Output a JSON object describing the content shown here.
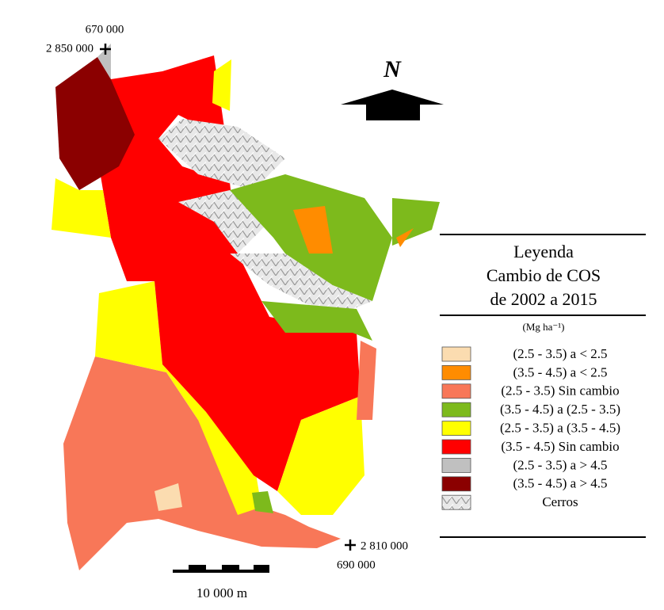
{
  "coordinates": {
    "top_left": {
      "x": "670 000",
      "y": "2 850 000"
    },
    "bottom_right": {
      "y": "2 810 000",
      "x": "690 000"
    }
  },
  "north": "N",
  "legend": {
    "title": [
      "Leyenda",
      "Cambio de COS",
      "de 2002 a 2015"
    ],
    "unit": "(Mg ha⁻¹)",
    "items": [
      {
        "label": "(2.5 - 3.5) a < 2.5",
        "color": "#fbdcb0"
      },
      {
        "label": "(3.5 - 4.5) a < 2.5",
        "color": "#ff8c00"
      },
      {
        "label": "(2.5 - 3.5) Sin cambio",
        "color": "#f87758"
      },
      {
        "label": "(3.5 - 4.5) a (2.5 - 3.5)",
        "color": "#7dba1c"
      },
      {
        "label": "(2.5 - 3.5) a (3.5 - 4.5)",
        "color": "#ffff00"
      },
      {
        "label": "(3.5 - 4.5) Sin cambio",
        "color": "#ff0000"
      },
      {
        "label": "(2.5 - 3.5) a > 4.5",
        "color": "#c0c0c0"
      },
      {
        "label": "(3.5 - 4.5) a > 4.5",
        "color": "#8b0000"
      },
      {
        "label": "Cerros",
        "color": "#d8cce0"
      }
    ]
  },
  "scale_bar": "10 000 m"
}
